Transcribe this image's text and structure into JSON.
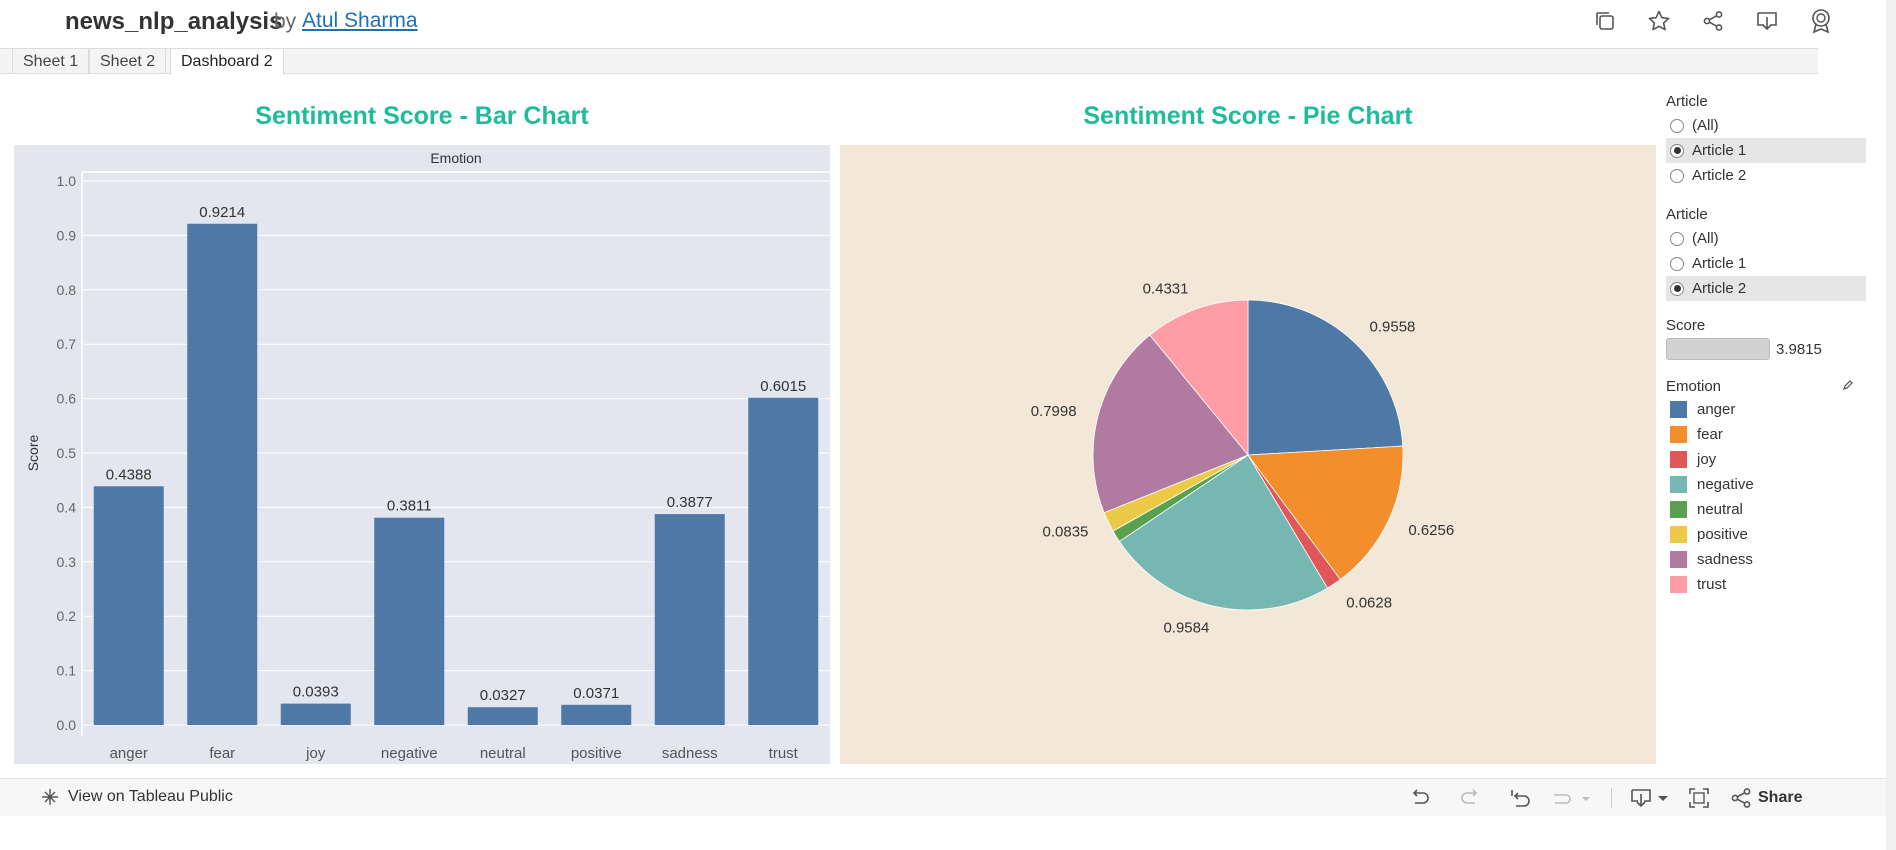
{
  "header": {
    "title": "news_nlp_analysis",
    "by": "by",
    "author": "Atul Sharma",
    "icons": [
      "copy-icon",
      "star-icon",
      "share-icon",
      "download-icon",
      "badge-icon"
    ]
  },
  "tabs": [
    {
      "label": "Sheet 1",
      "active": false
    },
    {
      "label": "Sheet 2",
      "active": false
    },
    {
      "label": "Dashboard 2",
      "active": true
    }
  ],
  "bar_title": "Sentiment Score - Bar Chart",
  "pie_title": "Sentiment Score - Pie Chart",
  "filters": {
    "article1": {
      "label": "Article",
      "options": [
        {
          "label": "(All)",
          "selected": false
        },
        {
          "label": "Article 1",
          "selected": true
        },
        {
          "label": "Article 2",
          "selected": false
        }
      ]
    },
    "article2": {
      "label": "Article",
      "options": [
        {
          "label": "(All)",
          "selected": false
        },
        {
          "label": "Article 1",
          "selected": false
        },
        {
          "label": "Article 2",
          "selected": true
        }
      ]
    },
    "score": {
      "label": "Score",
      "value": "3.9815"
    },
    "legend": {
      "label": "Emotion",
      "items": [
        {
          "label": "anger",
          "color": "#4e79a7"
        },
        {
          "label": "fear",
          "color": "#f28e2b"
        },
        {
          "label": "joy",
          "color": "#e15759"
        },
        {
          "label": "negative",
          "color": "#76b7b2"
        },
        {
          "label": "neutral",
          "color": "#59a14f"
        },
        {
          "label": "positive",
          "color": "#edc948"
        },
        {
          "label": "sadness",
          "color": "#b07aa1"
        },
        {
          "label": "trust",
          "color": "#ff9da7"
        }
      ]
    }
  },
  "bottom": {
    "view_label": "View on Tableau Public",
    "share_label": "Share"
  },
  "chart_data": [
    {
      "type": "bar",
      "title": "Sentiment Score - Bar Chart",
      "header": "Emotion",
      "ylabel": "Score",
      "xlabel": "",
      "ylim": [
        0,
        1.0
      ],
      "yticks": [
        "0.0",
        "0.1",
        "0.2",
        "0.3",
        "0.4",
        "0.5",
        "0.6",
        "0.7",
        "0.8",
        "0.9",
        "1.0"
      ],
      "categories": [
        "anger",
        "fear",
        "joy",
        "negative",
        "neutral",
        "positive",
        "sadness",
        "trust"
      ],
      "values": [
        0.4388,
        0.9214,
        0.0393,
        0.3811,
        0.0327,
        0.0371,
        0.3877,
        0.6015
      ],
      "labels": [
        "0.4388",
        "0.9214",
        "0.0393",
        "0.3811",
        "0.0327",
        "0.0371",
        "0.3877",
        "0.6015"
      ],
      "color": "#4e79a7",
      "grid": true
    },
    {
      "type": "pie",
      "title": "Sentiment Score - Pie Chart",
      "categories": [
        "anger",
        "fear",
        "joy",
        "negative",
        "neutral",
        "positive",
        "sadness",
        "trust"
      ],
      "values": [
        0.9558,
        0.6256,
        0.0628,
        0.9584,
        0.0496,
        0.0835,
        0.7998,
        0.4331
      ],
      "labels": [
        "0.9558",
        "0.6256",
        "0.0628",
        "0.9584",
        "",
        "0.0835",
        "0.7998",
        "0.4331"
      ],
      "colors": [
        "#4e79a7",
        "#f28e2b",
        "#e15759",
        "#76b7b2",
        "#59a14f",
        "#edc948",
        "#b07aa1",
        "#ff9da7"
      ]
    }
  ]
}
